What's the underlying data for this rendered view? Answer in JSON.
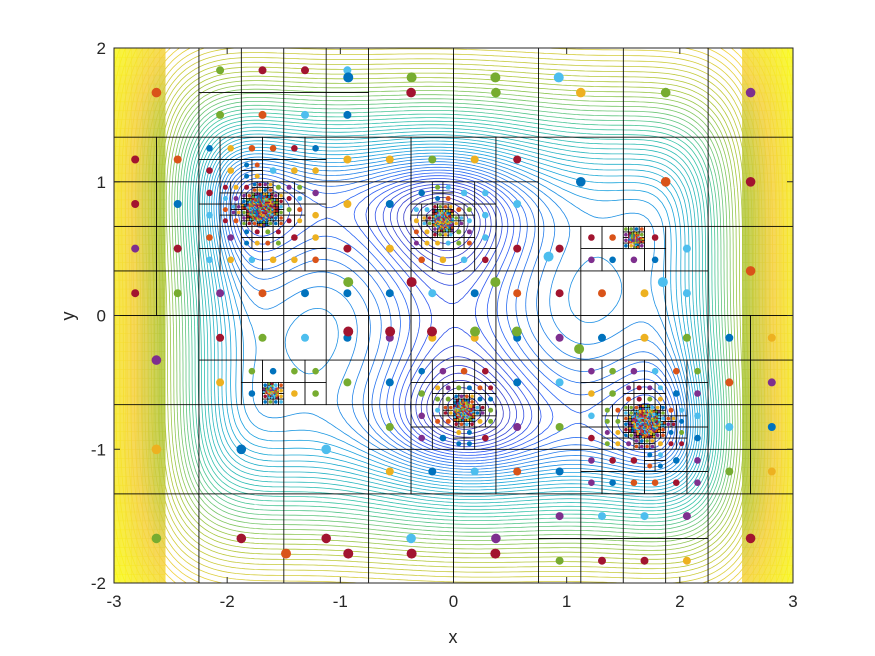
{
  "chart_data": {
    "type": "contour",
    "title": "",
    "xlabel": "x",
    "ylabel": "y",
    "xlim": [
      -3,
      3
    ],
    "ylim": [
      -2,
      2
    ],
    "xticks": [
      "-3",
      "-2",
      "-1",
      "0",
      "1",
      "2",
      "3"
    ],
    "yticks": [
      "-2",
      "-1",
      "0",
      "1",
      "2"
    ],
    "grid": false,
    "legend": "none",
    "colormap": [
      "#3e26a8",
      "#2e5cf7",
      "#1aa5dd",
      "#37c5a6",
      "#a8c63a",
      "#f4d13d",
      "#f9fb15"
    ],
    "marker_colors": [
      "#0072bd",
      "#d95319",
      "#edb120",
      "#7e2f8e",
      "#77ac30",
      "#4dbeee",
      "#a2142f"
    ],
    "large_points": [
      {
        "x": -0.37,
        "y": 0.25,
        "color": "#a2142f"
      },
      {
        "x": 0.37,
        "y": 0.25,
        "color": "#77ac30"
      },
      {
        "x": -0.93,
        "y": 0.25,
        "color": "#77ac30"
      },
      {
        "x": 1.11,
        "y": -0.25,
        "color": "#77ac30"
      },
      {
        "x": -0.37,
        "y": 1.78,
        "color": "#77ac30"
      },
      {
        "x": 0.37,
        "y": 1.78,
        "color": "#77ac30"
      },
      {
        "x": -0.37,
        "y": -1.78,
        "color": "#a2142f"
      },
      {
        "x": 0.37,
        "y": -1.78,
        "color": "#a2142f"
      },
      {
        "x": -0.93,
        "y": 1.78,
        "color": "#0072bd"
      },
      {
        "x": 0.93,
        "y": 1.78,
        "color": "#4dbeee"
      },
      {
        "x": -0.93,
        "y": -1.78,
        "color": "#a2142f"
      },
      {
        "x": -1.48,
        "y": -1.78,
        "color": "#d95319"
      },
      {
        "x": -0.93,
        "y": -0.12,
        "color": "#a2142f"
      },
      {
        "x": -0.56,
        "y": -0.12,
        "color": "#a2142f"
      },
      {
        "x": -0.19,
        "y": -0.12,
        "color": "#a2142f"
      },
      {
        "x": 0.19,
        "y": -0.12,
        "color": "#77ac30"
      },
      {
        "x": 0.56,
        "y": -0.12,
        "color": "#77ac30"
      },
      {
        "x": 0.84,
        "y": 0.44,
        "color": "#4dbeee"
      },
      {
        "x": 1.85,
        "y": 0.25,
        "color": "#4dbeee"
      }
    ]
  }
}
